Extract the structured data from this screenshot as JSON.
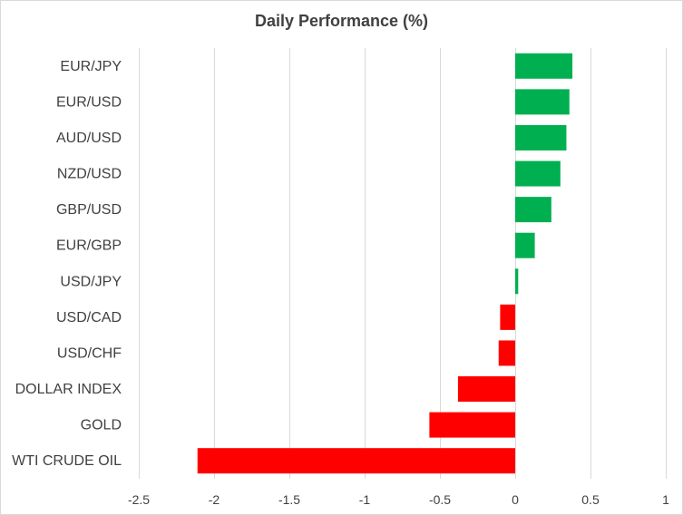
{
  "chart_data": {
    "type": "bar",
    "orientation": "horizontal",
    "title": "Daily Performance (%)",
    "xlabel": "",
    "ylabel": "",
    "categories": [
      "EUR/JPY",
      "EUR/USD",
      "AUD/USD",
      "NZD/USD",
      "GBP/USD",
      "EUR/GBP",
      "USD/JPY",
      "USD/CAD",
      "USD/CHF",
      "DOLLAR INDEX",
      "GOLD",
      "WTI CRUDE OIL"
    ],
    "values": [
      0.38,
      0.36,
      0.34,
      0.3,
      0.24,
      0.13,
      0.02,
      -0.1,
      -0.11,
      -0.38,
      -0.57,
      -2.11
    ],
    "xlim": [
      -2.5,
      1
    ],
    "xticks": [
      -2.5,
      -2,
      -1.5,
      -1,
      -0.5,
      0,
      0.5,
      1
    ],
    "xtick_labels": [
      "-2.5",
      "-2",
      "-1.5",
      "-1",
      "-0.5",
      "0",
      "0.5",
      "1"
    ],
    "grid": "vertical",
    "legend": "none",
    "colors": {
      "positive": "#00b050",
      "negative": "#ff0000",
      "grid": "#d9d9d9",
      "text": "#404040"
    }
  }
}
